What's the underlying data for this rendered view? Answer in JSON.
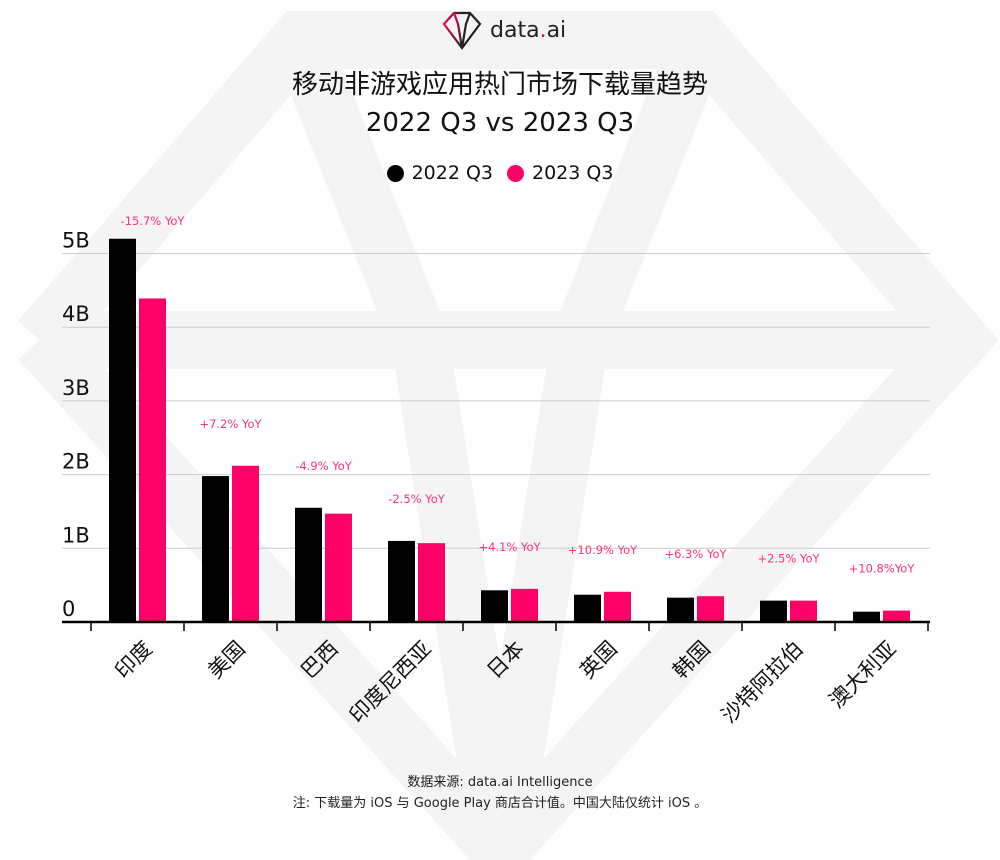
{
  "brand": {
    "name_main": "data",
    "name_dot": ".",
    "name_tail": "ai"
  },
  "title_line1": "移动非游戏应用热门市场下载量趋势",
  "title_line2": "2022 Q3 vs 2023 Q3",
  "colors": {
    "series_2022": "#000000",
    "series_2023": "#ff0066",
    "yoy_label": "#ff3377",
    "watermark": "#f5f5f5",
    "grid": "#cccccc"
  },
  "chart_data": {
    "type": "bar",
    "categories": [
      "印度",
      "美国",
      "巴西",
      "印度尼西亚",
      "日本",
      "英国",
      "韩国",
      "沙特阿拉伯",
      "澳大利亚"
    ],
    "series": [
      {
        "name": "2022 Q3",
        "values": [
          5.2,
          1.98,
          1.55,
          1.1,
          0.43,
          0.37,
          0.33,
          0.29,
          0.14
        ]
      },
      {
        "name": "2023 Q3",
        "values": [
          4.39,
          2.12,
          1.47,
          1.07,
          0.45,
          0.41,
          0.35,
          0.29,
          0.155
        ]
      }
    ],
    "annotations": [
      "-15.7% YoY",
      "+7.2% YoY",
      "-4.9% YoY",
      "-2.5% YoY",
      "+4.1% YoY",
      "+10.9% YoY",
      "+6.3% YoY",
      "+2.5% YoY",
      "+10.8%YoY"
    ],
    "y_ticks": [
      "0",
      "1B",
      "2B",
      "3B",
      "4B",
      "5B"
    ],
    "y_tick_values": [
      0,
      1,
      2,
      3,
      4,
      5
    ],
    "ylim": [
      0,
      5.0
    ],
    "y_unit": "billions of downloads",
    "grid": true,
    "legend_position": "top-center"
  },
  "footer": {
    "source": "数据来源: data.ai Intelligence",
    "note": "注: 下载量为 iOS 与 Google Play 商店合计值。中国大陆仅统计 iOS 。"
  }
}
